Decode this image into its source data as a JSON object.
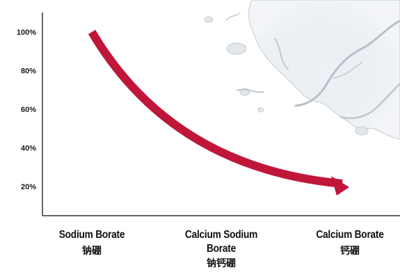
{
  "chart_data": {
    "type": "line",
    "title": "",
    "xlabel": "",
    "ylabel": "",
    "ylim": [
      10,
      110
    ],
    "yticks": [
      "100%",
      "80%",
      "60%",
      "40%",
      "20%"
    ],
    "ytick_values": [
      100,
      80,
      60,
      40,
      20
    ],
    "categories": [
      {
        "en": "Sodium Borate",
        "cn": "钠硼"
      },
      {
        "en": "Calcium Sodium Borate",
        "cn": "钠钙硼"
      },
      {
        "en": "Calcium Borate",
        "cn": "钙硼"
      }
    ],
    "series": [
      {
        "values": [
          100,
          44,
          20
        ],
        "color": "#c0163a"
      }
    ],
    "grid": false
  }
}
